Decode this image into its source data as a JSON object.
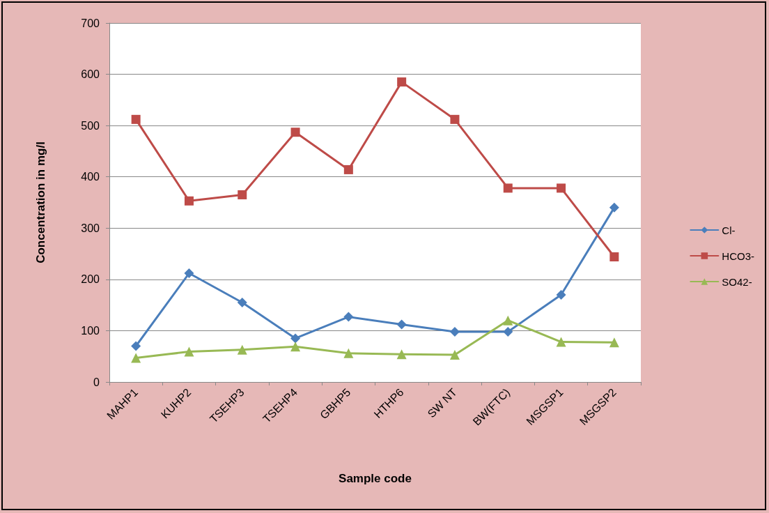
{
  "chart_data": {
    "type": "line",
    "xlabel": "Sample code",
    "ylabel": "Concentration in mg/l",
    "categories": [
      "MAHP1",
      "KUHP2",
      "TSEHP3",
      "TSEHP4",
      "GBHP5",
      "HTHP6",
      "SW NT",
      "BW(FTC)",
      "MSGSP1",
      "MSGSP2"
    ],
    "series": [
      {
        "name": "Cl-",
        "color": "#4a7ebb",
        "marker": "diamond",
        "values": [
          70,
          212,
          155,
          85,
          127,
          112,
          98,
          98,
          170,
          340
        ]
      },
      {
        "name": "HCO3-",
        "color": "#be4b48",
        "marker": "square",
        "values": [
          512,
          353,
          365,
          487,
          414,
          585,
          512,
          378,
          378,
          244
        ]
      },
      {
        "name": "SO42-",
        "color": "#98b954",
        "marker": "triangle",
        "values": [
          47,
          59,
          63,
          69,
          56,
          54,
          53,
          120,
          78,
          77
        ]
      }
    ],
    "ylim": [
      0,
      700
    ],
    "yticks": [
      0,
      100,
      200,
      300,
      400,
      500,
      600,
      700
    ],
    "grid": "y",
    "legend": "right"
  }
}
